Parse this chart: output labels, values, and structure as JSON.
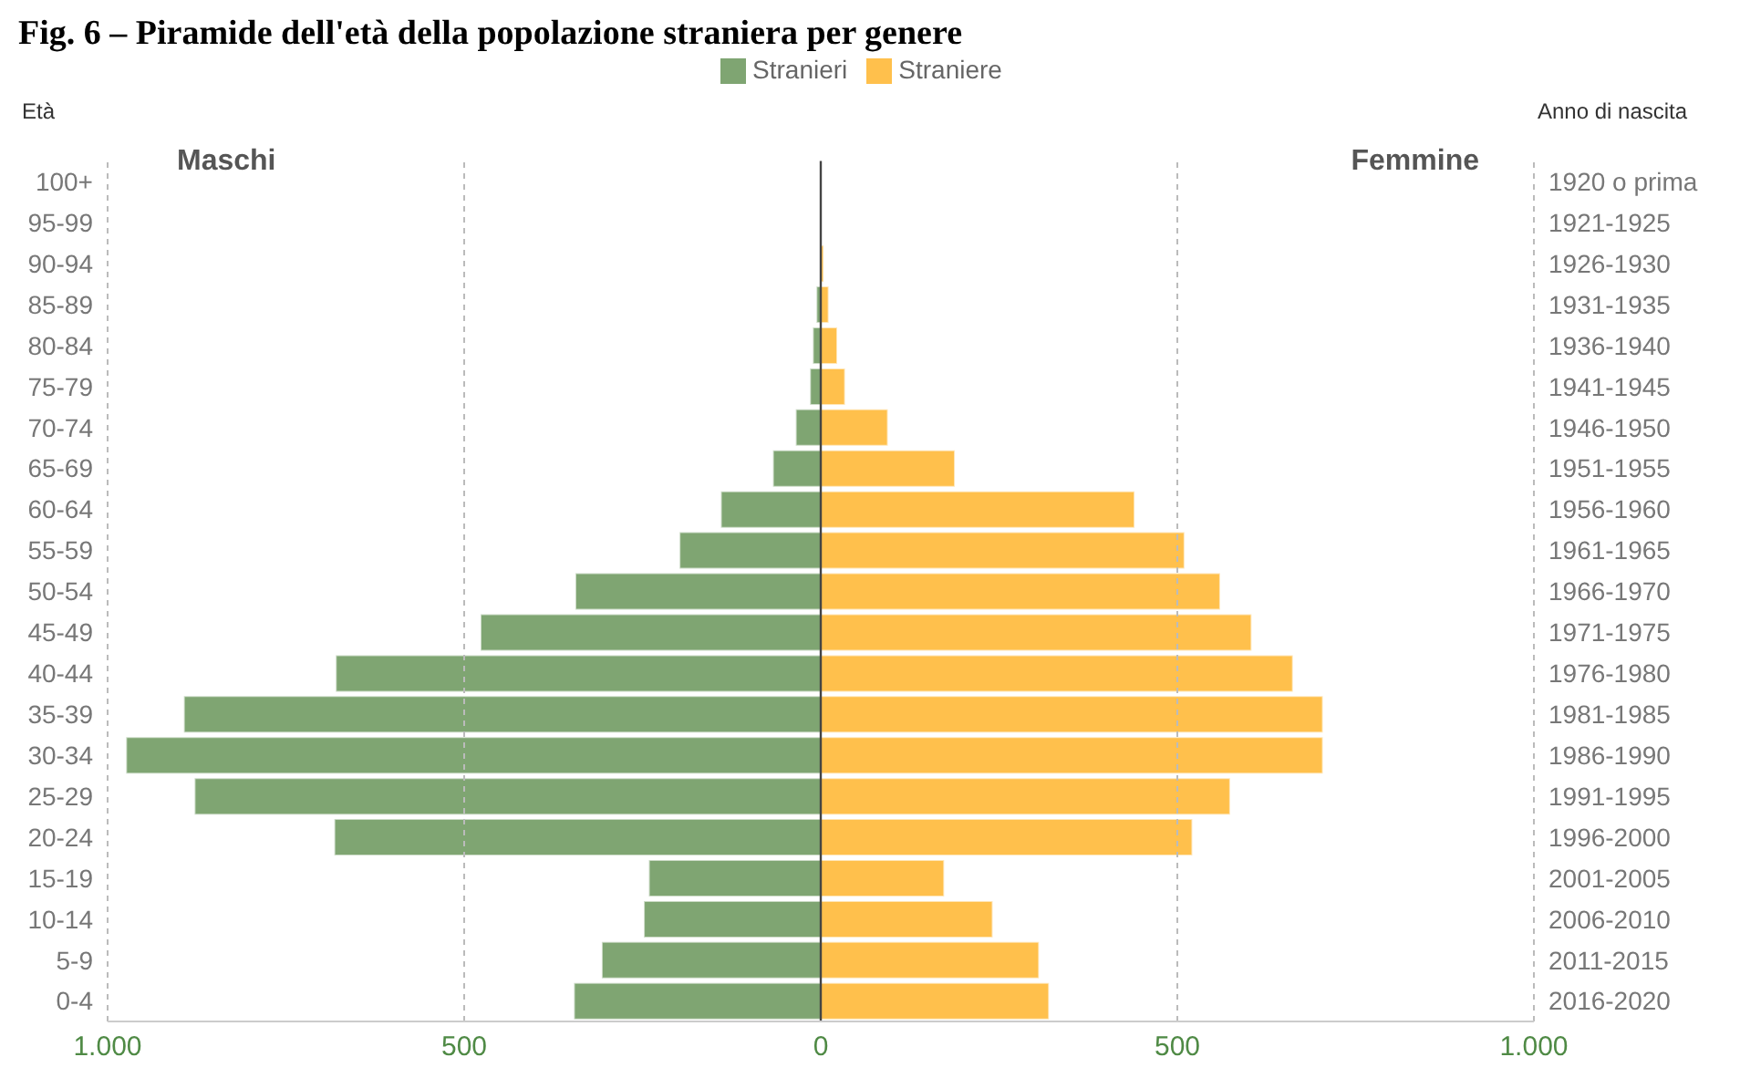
{
  "chart_data": {
    "type": "bar",
    "orientation": "horizontal",
    "stacked": true,
    "title": "Fig. 6 – Piramide dell'età della popolazione straniera per genere",
    "ylabel": "Età",
    "y2label": "Anno di nascita",
    "categories": [
      "100+",
      "95-99",
      "90-94",
      "85-89",
      "80-84",
      "75-79",
      "70-74",
      "65-69",
      "60-64",
      "55-59",
      "50-54",
      "45-49",
      "40-44",
      "35-39",
      "30-34",
      "25-29",
      "20-24",
      "15-19",
      "10-14",
      "5-9",
      "0-4"
    ],
    "y2_categories": [
      "1920 o prima",
      "1921-1925",
      "1926-1930",
      "1931-1935",
      "1936-1940",
      "1941-1945",
      "1946-1950",
      "1951-1955",
      "1956-1960",
      "1961-1965",
      "1966-1970",
      "1971-1975",
      "1976-1980",
      "1981-1985",
      "1986-1990",
      "1991-1995",
      "1996-2000",
      "2001-2005",
      "2006-2010",
      "2011-2015",
      "2016-2020"
    ],
    "series": [
      {
        "name": "Stranieri",
        "color": "#7fa572",
        "values": [
          0,
          0,
          0,
          -6,
          -11,
          -15,
          -35,
          -67,
          -140,
          -198,
          -344,
          -477,
          -680,
          -893,
          -974,
          -878,
          -682,
          -241,
          -248,
          -307,
          -346
        ]
      },
      {
        "name": "Straniere",
        "color": "#ffc04c",
        "values": [
          0,
          0,
          4,
          11,
          23,
          34,
          94,
          188,
          440,
          510,
          560,
          604,
          662,
          704,
          704,
          574,
          521,
          173,
          241,
          306,
          320
        ]
      }
    ],
    "xlim": [
      -1000,
      1000
    ],
    "xticks": [
      {
        "value": -1000,
        "label": "1.000"
      },
      {
        "value": -500,
        "label": "500"
      },
      0,
      500,
      {
        "value": 1000,
        "label": "1.000"
      }
    ],
    "grid": "x",
    "legend": "top",
    "annotations": [
      "Maschi",
      "Femmine"
    ]
  }
}
